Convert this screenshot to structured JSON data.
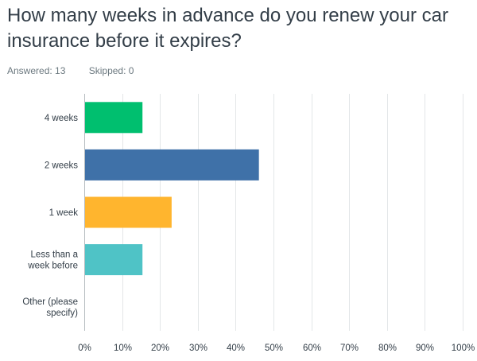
{
  "question": {
    "title": "How many weeks in advance do you renew your car insurance before it expires?"
  },
  "stats": {
    "answered": "Answered: 13",
    "skipped": "Skipped: 0"
  },
  "chart_data": {
    "type": "bar",
    "orientation": "horizontal",
    "categories": [
      "4 weeks",
      "2 weeks",
      "1 week",
      "Less than a week before",
      "Other (please specify)"
    ],
    "category_lines": [
      [
        "4 weeks"
      ],
      [
        "2 weeks"
      ],
      [
        "1 week"
      ],
      [
        "Less than a",
        "week before"
      ],
      [
        "Other (please",
        "specify)"
      ]
    ],
    "values": [
      15.38,
      46.15,
      23.08,
      15.38,
      0
    ],
    "colors": [
      "#00bf6f",
      "#3f71a8",
      "#ffb52e",
      "#4fc3c6",
      "#8c8c8c"
    ],
    "xlim": [
      0,
      100
    ],
    "ticks": [
      "0%",
      "10%",
      "20%",
      "30%",
      "40%",
      "50%",
      "60%",
      "70%",
      "80%",
      "90%",
      "100%"
    ],
    "grid": true
  }
}
